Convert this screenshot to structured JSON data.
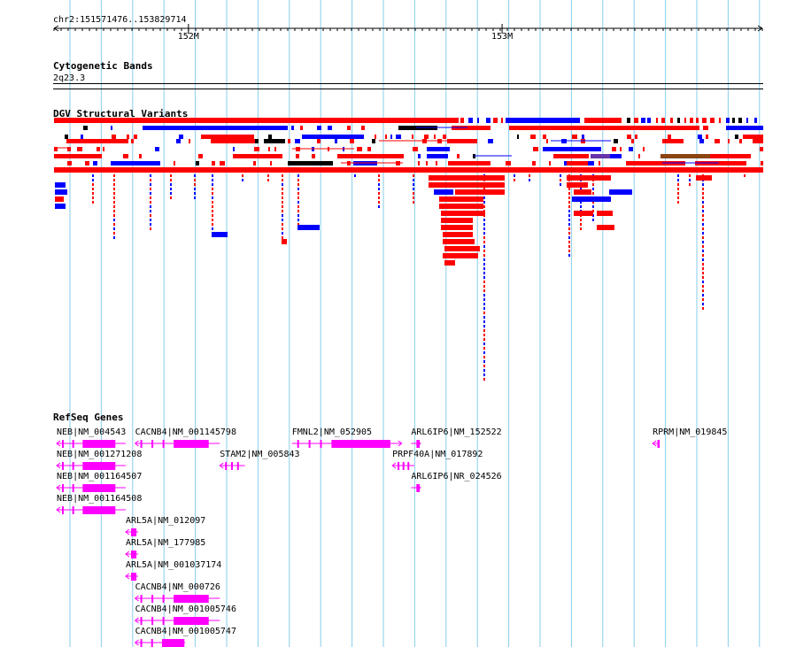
{
  "view": {
    "location": "chr2:151571476..153829714",
    "start": 151571476,
    "end": 153829714,
    "ticks": [
      {
        "pos": 152000000,
        "label": "152M"
      },
      {
        "pos": 153000000,
        "label": "153M"
      }
    ]
  },
  "colors": {
    "loss": "#ff0000",
    "gain": "#0000ff",
    "both": "#000000",
    "inversion": "#8b4513",
    "other": "#6633aa",
    "gene": "#ff00ff",
    "grid": "#87ceeb"
  },
  "tracks": {
    "cytoband": {
      "title": "Cytogenetic Bands",
      "band": "2q23.3"
    },
    "dgv": {
      "title": "DGV Structural Variants"
    },
    "refseq": {
      "title": "RefSeq Genes"
    }
  },
  "genes": [
    {
      "label": "NEB|NM_004543",
      "start": 151580000,
      "end": 151800000,
      "strand": "-",
      "row": 0
    },
    {
      "label": "NEB|NM_001271208",
      "start": 151580000,
      "end": 151800000,
      "strand": "-",
      "row": 1
    },
    {
      "label": "NEB|NM_001164507",
      "start": 151580000,
      "end": 151800000,
      "strand": "-",
      "row": 2
    },
    {
      "label": "NEB|NM_001164508",
      "start": 151580000,
      "end": 151800000,
      "strand": "-",
      "row": 3
    },
    {
      "label": "ARL5A|NM_012097",
      "start": 151800000,
      "end": 151840000,
      "strand": "-",
      "row": 4
    },
    {
      "label": "ARL5A|NM_177985",
      "start": 151800000,
      "end": 151840000,
      "strand": "-",
      "row": 5
    },
    {
      "label": "ARL5A|NM_001037174",
      "start": 151800000,
      "end": 151840000,
      "strand": "-",
      "row": 6
    },
    {
      "label": "CACNB4|NM_000726",
      "start": 151830000,
      "end": 152100000,
      "strand": "-",
      "row": 7
    },
    {
      "label": "CACNB4|NM_001005746",
      "start": 151830000,
      "end": 152100000,
      "strand": "-",
      "row": 8
    },
    {
      "label": "CACNB4|NM_001005747",
      "start": 151830000,
      "end": 151990000,
      "strand": "-",
      "row": 9
    },
    {
      "label": "CACNB4|NM_001145798",
      "start": 151830000,
      "end": 152100000,
      "strand": "-",
      "row": 0
    },
    {
      "label": "STAM2|NM_005843",
      "start": 152100000,
      "end": 152180000,
      "strand": "-",
      "row": 1
    },
    {
      "label": "FMNL2|NM_052905",
      "start": 152330000,
      "end": 152680000,
      "strand": "+",
      "row": 0
    },
    {
      "label": "ARL6IP6|NM_152522",
      "start": 152710000,
      "end": 152740000,
      "strand": "+",
      "row": 0
    },
    {
      "label": "PRPF40A|NM_017892",
      "start": 152650000,
      "end": 152720000,
      "strand": "-",
      "row": 1
    },
    {
      "label": "ARL6IP6|NR_024526",
      "start": 152710000,
      "end": 152740000,
      "strand": "+",
      "row": 2
    },
    {
      "label": "RPRM|NM_019845",
      "start": 153480000,
      "end": 153500000,
      "strand": "-",
      "row": 0
    }
  ]
}
